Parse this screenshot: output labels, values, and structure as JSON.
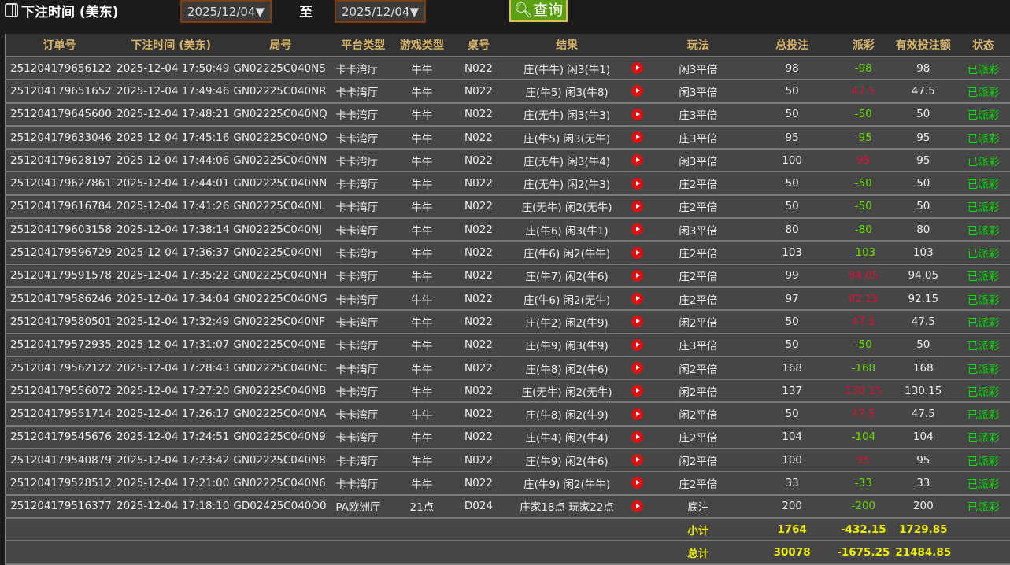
{
  "toolbar": {
    "title": "下注时间 (美东)",
    "start_date": "2025/12/04▼",
    "to_label": "至",
    "end_date": "2025/12/04▼",
    "query_label": "查询"
  },
  "colors": {
    "header_text": "#d6b46a",
    "loss": "#66dd00",
    "win": "#dd1133",
    "status": "#00e600",
    "totals": "#eeee00"
  },
  "table": {
    "headers": [
      "订单号",
      "下注时间 (美东)",
      "局号",
      "平台类型",
      "游戏类型",
      "桌号",
      "结果",
      "",
      "玩法",
      "总投注",
      "派彩",
      "有效投注额",
      "状态"
    ],
    "rows": [
      [
        "251204179656122",
        "2025-12-04 17:50:49",
        "GN02225C040NS",
        "卡卡湾厅",
        "牛牛",
        "N022",
        "庄(牛牛) 闲3(牛1)",
        "闲3平倍",
        "98",
        "-98",
        "98",
        "已派彩"
      ],
      [
        "251204179651652",
        "2025-12-04 17:49:46",
        "GN02225C040NR",
        "卡卡湾厅",
        "牛牛",
        "N022",
        "庄(牛5) 闲3(牛8)",
        "闲3平倍",
        "50",
        "47.5",
        "47.5",
        "已派彩"
      ],
      [
        "251204179645600",
        "2025-12-04 17:48:21",
        "GN02225C040NQ",
        "卡卡湾厅",
        "牛牛",
        "N022",
        "庄(无牛) 闲3(牛3)",
        "庄3平倍",
        "50",
        "-50",
        "50",
        "已派彩"
      ],
      [
        "251204179633046",
        "2025-12-04 17:45:16",
        "GN02225C040NO",
        "卡卡湾厅",
        "牛牛",
        "N022",
        "庄(牛5) 闲3(无牛)",
        "庄3平倍",
        "95",
        "-95",
        "95",
        "已派彩"
      ],
      [
        "251204179628197",
        "2025-12-04 17:44:06",
        "GN02225C040NN",
        "卡卡湾厅",
        "牛牛",
        "N022",
        "庄(无牛) 闲3(牛4)",
        "闲3平倍",
        "100",
        "95",
        "95",
        "已派彩"
      ],
      [
        "251204179627861",
        "2025-12-04 17:44:01",
        "GN02225C040NN",
        "卡卡湾厅",
        "牛牛",
        "N022",
        "庄(无牛) 闲2(牛3)",
        "庄2平倍",
        "50",
        "-50",
        "50",
        "已派彩"
      ],
      [
        "251204179616784",
        "2025-12-04 17:41:26",
        "GN02225C040NL",
        "卡卡湾厅",
        "牛牛",
        "N022",
        "庄(无牛) 闲2(无牛)",
        "庄2平倍",
        "50",
        "-50",
        "50",
        "已派彩"
      ],
      [
        "251204179603158",
        "2025-12-04 17:38:14",
        "GN02225C040NJ",
        "卡卡湾厅",
        "牛牛",
        "N022",
        "庄(牛6) 闲3(牛1)",
        "闲3平倍",
        "80",
        "-80",
        "80",
        "已派彩"
      ],
      [
        "251204179596729",
        "2025-12-04 17:36:37",
        "GN02225C040NI",
        "卡卡湾厅",
        "牛牛",
        "N022",
        "庄(牛6) 闲2(牛牛)",
        "庄2平倍",
        "103",
        "-103",
        "103",
        "已派彩"
      ],
      [
        "251204179591578",
        "2025-12-04 17:35:22",
        "GN02225C040NH",
        "卡卡湾厅",
        "牛牛",
        "N022",
        "庄(牛7) 闲2(牛6)",
        "庄2平倍",
        "99",
        "94.05",
        "94.05",
        "已派彩"
      ],
      [
        "251204179586246",
        "2025-12-04 17:34:04",
        "GN02225C040NG",
        "卡卡湾厅",
        "牛牛",
        "N022",
        "庄(牛6) 闲2(无牛)",
        "庄2平倍",
        "97",
        "92.15",
        "92.15",
        "已派彩"
      ],
      [
        "251204179580501",
        "2025-12-04 17:32:49",
        "GN02225C040NF",
        "卡卡湾厅",
        "牛牛",
        "N022",
        "庄(牛2) 闲2(牛9)",
        "闲2平倍",
        "50",
        "47.5",
        "47.5",
        "已派彩"
      ],
      [
        "251204179572935",
        "2025-12-04 17:31:07",
        "GN02225C040NE",
        "卡卡湾厅",
        "牛牛",
        "N022",
        "庄(牛9) 闲3(牛9)",
        "庄3平倍",
        "50",
        "-50",
        "50",
        "已派彩"
      ],
      [
        "251204179562122",
        "2025-12-04 17:28:43",
        "GN02225C040NC",
        "卡卡湾厅",
        "牛牛",
        "N022",
        "庄(牛8) 闲2(牛6)",
        "闲2平倍",
        "168",
        "-168",
        "168",
        "已派彩"
      ],
      [
        "251204179556072",
        "2025-12-04 17:27:20",
        "GN02225C040NB",
        "卡卡湾厅",
        "牛牛",
        "N022",
        "庄(无牛) 闲2(无牛)",
        "闲2平倍",
        "137",
        "130.15",
        "130.15",
        "已派彩"
      ],
      [
        "251204179551714",
        "2025-12-04 17:26:17",
        "GN02225C040NA",
        "卡卡湾厅",
        "牛牛",
        "N022",
        "庄(牛8) 闲2(牛9)",
        "闲2平倍",
        "50",
        "47.5",
        "47.5",
        "已派彩"
      ],
      [
        "251204179545676",
        "2025-12-04 17:24:51",
        "GN02225C040N9",
        "卡卡湾厅",
        "牛牛",
        "N022",
        "庄(牛4) 闲2(牛4)",
        "庄2平倍",
        "104",
        "-104",
        "104",
        "已派彩"
      ],
      [
        "251204179540879",
        "2025-12-04 17:23:42",
        "GN02225C040N8",
        "卡卡湾厅",
        "牛牛",
        "N022",
        "庄(牛9) 闲2(牛6)",
        "闲2平倍",
        "100",
        "95",
        "95",
        "已派彩"
      ],
      [
        "251204179528512",
        "2025-12-04 17:21:00",
        "GN02225C040N6",
        "卡卡湾厅",
        "牛牛",
        "N022",
        "庄(牛9) 闲2(牛牛)",
        "庄2平倍",
        "33",
        "-33",
        "33",
        "已派彩"
      ],
      [
        "251204179516377",
        "2025-12-04 17:18:10",
        "GD02425C040O0",
        "PA欧洲厅",
        "21点",
        "D024",
        "庄家18点 玩家22点",
        "底注",
        "200",
        "-200",
        "200",
        "已派彩"
      ]
    ],
    "subtotal": {
      "label": "小计",
      "bet": "1764",
      "payout": "-432.15",
      "valid": "1729.85"
    },
    "total": {
      "label": "总计",
      "bet": "30078",
      "payout": "-1675.25",
      "valid": "21484.85"
    }
  }
}
